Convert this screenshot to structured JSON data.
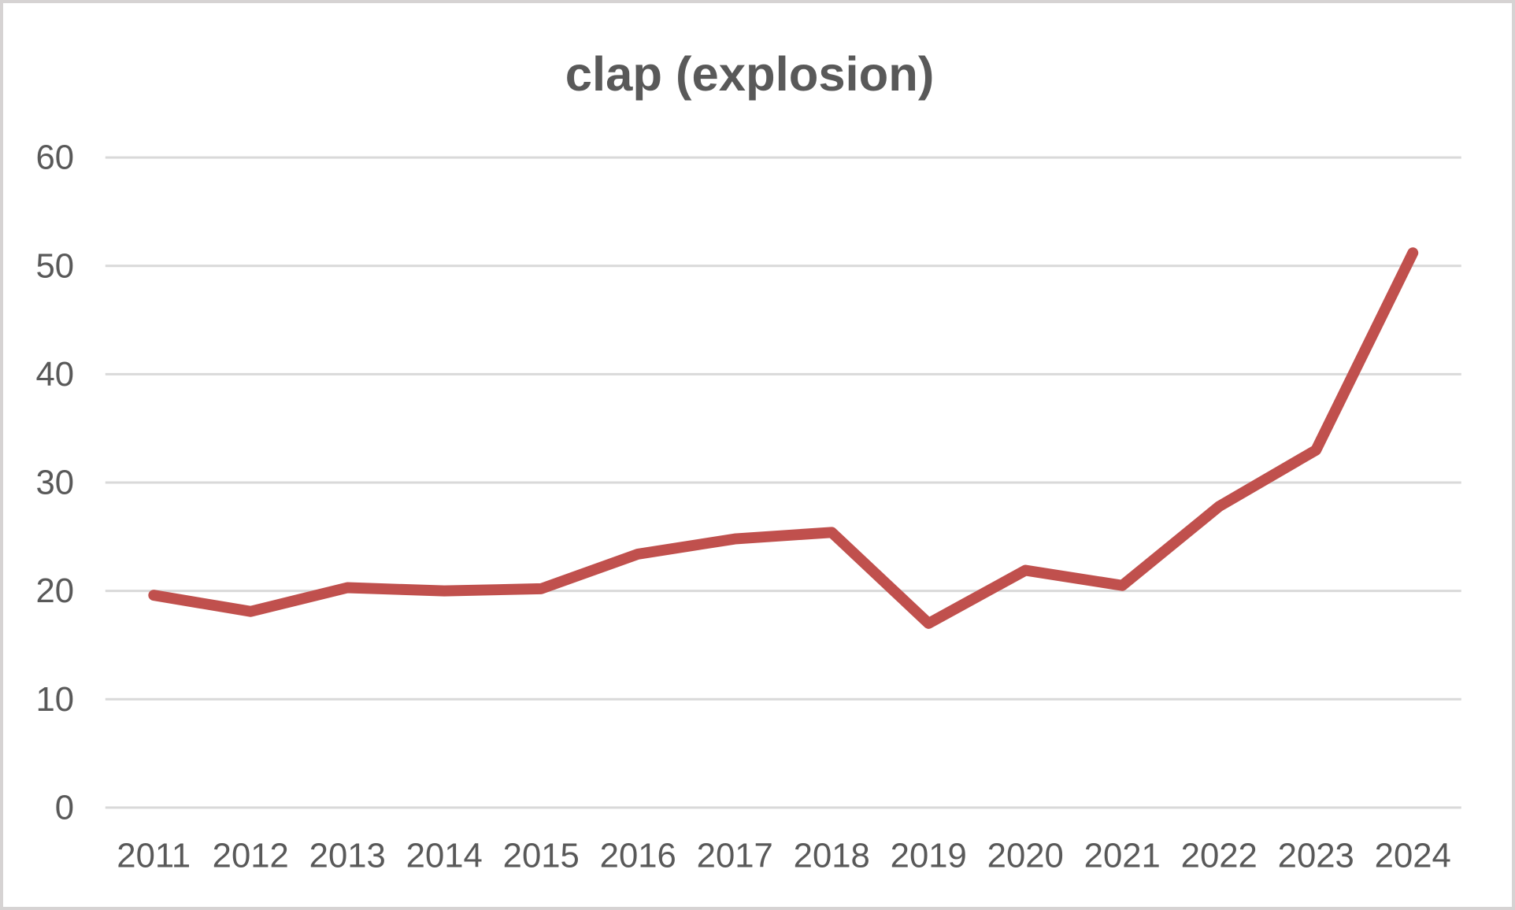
{
  "chart_data": {
    "type": "line",
    "title": "clap (explosion)",
    "categories": [
      "2011",
      "2012",
      "2013",
      "2014",
      "2015",
      "2016",
      "2017",
      "2018",
      "2019",
      "2020",
      "2021",
      "2022",
      "2023",
      "2024"
    ],
    "series": [
      {
        "name": "clap (explosion)",
        "color": "#C0504D",
        "values": [
          19.6,
          18.1,
          20.3,
          20.0,
          20.2,
          23.4,
          24.8,
          25.4,
          17.0,
          21.9,
          20.5,
          27.8,
          33.0,
          51.2
        ]
      }
    ],
    "xlabel": "",
    "ylabel": "",
    "ylim": [
      0,
      60
    ],
    "ytick_labels": [
      "0",
      "10",
      "20",
      "30",
      "40",
      "50",
      "60"
    ],
    "yticks": [
      0,
      10,
      20,
      30,
      40,
      50,
      60
    ],
    "grid": "horizontal-only",
    "legend": "none",
    "markers": "none",
    "colors": {
      "line": "#C0504D",
      "text": "#595959",
      "gridline": "#D9D9D9",
      "frame_border": "#D6D3D3",
      "background": "#FFFFFF"
    }
  }
}
